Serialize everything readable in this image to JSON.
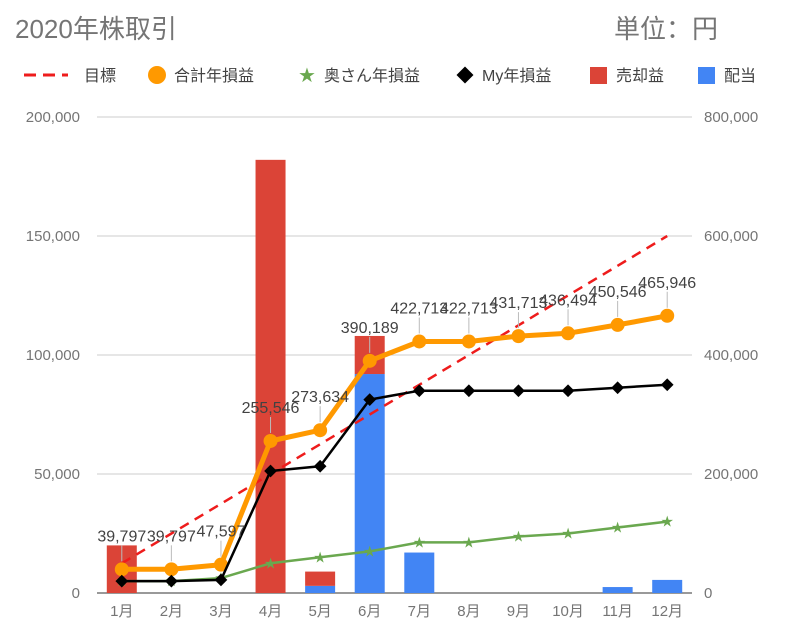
{
  "chart_data": {
    "type": "combo",
    "title": "2020年株取引",
    "unit_label": "単位：円",
    "categories": [
      "1月",
      "2月",
      "3月",
      "4月",
      "5月",
      "6月",
      "7月",
      "8月",
      "9月",
      "10月",
      "11月",
      "12月"
    ],
    "left_axis": {
      "min": 0,
      "max": 200000,
      "ticks": [
        0,
        50000,
        100000,
        150000,
        200000
      ],
      "tick_labels": [
        "0",
        "50,000",
        "100,000",
        "150,000",
        "200,000"
      ]
    },
    "right_axis": {
      "min": 0,
      "max": 800000,
      "ticks": [
        0,
        200000,
        400000,
        600000,
        800000
      ],
      "tick_labels": [
        "0",
        "200,000",
        "400,000",
        "600,000",
        "800,000"
      ]
    },
    "legend": [
      {
        "name": "目標",
        "color": "#ee1c1c",
        "marker": "dash"
      },
      {
        "name": "合計年損益",
        "color": "#ff9900",
        "marker": "circle"
      },
      {
        "name": "奥さん年損益",
        "color": "#6aa84f",
        "marker": "star"
      },
      {
        "name": "My年損益",
        "color": "#000000",
        "marker": "diamond"
      },
      {
        "name": "売却益",
        "color": "#db4437",
        "marker": "square"
      },
      {
        "name": "配当",
        "color": "#4285f4",
        "marker": "square"
      }
    ],
    "bars": {
      "stacked": true,
      "axis": "left",
      "series": [
        {
          "name": "配当",
          "color": "#4285f4",
          "values": [
            0,
            0,
            0,
            0,
            3000,
            92000,
            17000,
            0,
            0,
            0,
            2500,
            5500
          ]
        },
        {
          "name": "売却益",
          "color": "#db4437",
          "values": [
            20000,
            0,
            0,
            182000,
            6000,
            16000,
            0,
            0,
            0,
            0,
            0,
            0
          ]
        }
      ]
    },
    "lines": {
      "axis": "right",
      "series": [
        {
          "name": "目標",
          "color": "#ee1c1c",
          "style": "dashed",
          "values": [
            50000,
            100000,
            150000,
            200000,
            250000,
            300000,
            350000,
            400000,
            450000,
            500000,
            550000,
            600000
          ]
        },
        {
          "name": "合計年損益",
          "color": "#ff9900",
          "style": "thick",
          "marker": "circle",
          "values": [
            39797,
            39797,
            47597,
            255546,
            273634,
            390189,
            422713,
            422713,
            431713,
            436494,
            450546,
            465946
          ]
        },
        {
          "name": "奥さん年損益",
          "color": "#6aa84f",
          "style": "thin",
          "marker": "star",
          "values": [
            20000,
            20000,
            25000,
            50000,
            60000,
            70000,
            85000,
            85000,
            95000,
            100000,
            110000,
            120000
          ]
        },
        {
          "name": "My年損益",
          "color": "#000000",
          "style": "thin",
          "marker": "diamond",
          "values": [
            20000,
            20000,
            22000,
            205000,
            213000,
            325000,
            340000,
            340000,
            340000,
            340000,
            345000,
            350000
          ]
        }
      ]
    },
    "data_labels": [
      "39,797",
      "39,797",
      "47,597",
      "255,546",
      "273,634",
      "390,189",
      "422,713",
      "422,713",
      "431,713",
      "436,494",
      "450,546",
      "465,946"
    ]
  }
}
